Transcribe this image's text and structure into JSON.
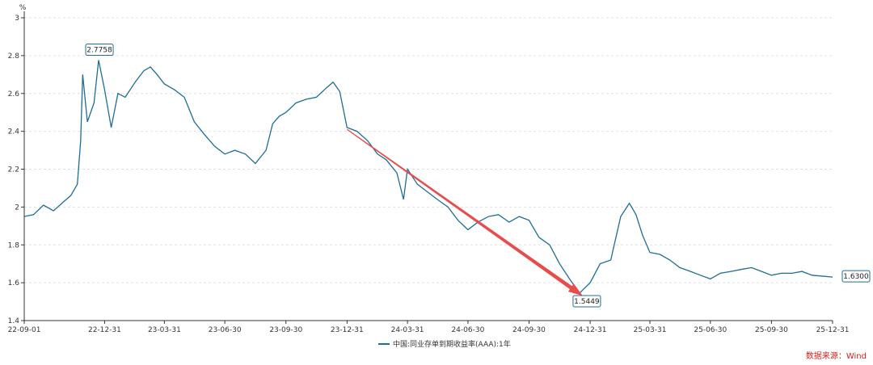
{
  "chart_data": {
    "type": "line",
    "ylabel": "%",
    "ylim": [
      1.4,
      3.0
    ],
    "y_ticks": [
      "1.4",
      "1.6",
      "1.8",
      "2",
      "2.2",
      "2.4",
      "2.6",
      "2.8",
      "3"
    ],
    "x_ticks": [
      "22-09-01",
      "22-12-31",
      "23-03-31",
      "23-06-30",
      "23-09-30",
      "23-12-31",
      "24-03-31",
      "24-06-30",
      "24-09-30",
      "24-12-31",
      "25-03-31",
      "25-06-30",
      "25-09-30",
      "25-12-31"
    ],
    "grid": true,
    "legend_position": "bottom-center",
    "series": [
      {
        "name": "中国:同业存单到期收益率(AAA):1年",
        "color": "#1e6f94",
        "points": [
          [
            "22-09-01",
            1.95
          ],
          [
            "22-09-15",
            1.96
          ],
          [
            "22-09-30",
            2.01
          ],
          [
            "22-10-15",
            1.98
          ],
          [
            "22-10-31",
            2.03
          ],
          [
            "22-11-10",
            2.06
          ],
          [
            "22-11-20",
            2.12
          ],
          [
            "22-11-25",
            2.35
          ],
          [
            "22-11-28",
            2.7
          ],
          [
            "22-12-05",
            2.45
          ],
          [
            "22-12-15",
            2.55
          ],
          [
            "22-12-22",
            2.7758
          ],
          [
            "22-12-31",
            2.62
          ],
          [
            "23-01-10",
            2.42
          ],
          [
            "23-01-20",
            2.6
          ],
          [
            "23-01-31",
            2.58
          ],
          [
            "23-02-15",
            2.66
          ],
          [
            "23-02-28",
            2.72
          ],
          [
            "23-03-10",
            2.74
          ],
          [
            "23-03-20",
            2.7
          ],
          [
            "23-03-31",
            2.65
          ],
          [
            "23-04-15",
            2.62
          ],
          [
            "23-04-30",
            2.58
          ],
          [
            "23-05-15",
            2.45
          ],
          [
            "23-05-31",
            2.38
          ],
          [
            "23-06-15",
            2.32
          ],
          [
            "23-06-30",
            2.28
          ],
          [
            "23-07-15",
            2.3
          ],
          [
            "23-07-31",
            2.28
          ],
          [
            "23-08-15",
            2.23
          ],
          [
            "23-08-31",
            2.3
          ],
          [
            "23-09-10",
            2.44
          ],
          [
            "23-09-20",
            2.48
          ],
          [
            "23-09-30",
            2.5
          ],
          [
            "23-10-15",
            2.55
          ],
          [
            "23-10-31",
            2.57
          ],
          [
            "23-11-15",
            2.58
          ],
          [
            "23-11-30",
            2.63
          ],
          [
            "23-12-10",
            2.66
          ],
          [
            "23-12-20",
            2.61
          ],
          [
            "23-12-31",
            2.42
          ],
          [
            "24-01-15",
            2.4
          ],
          [
            "24-01-31",
            2.35
          ],
          [
            "24-02-15",
            2.28
          ],
          [
            "24-02-28",
            2.25
          ],
          [
            "24-03-15",
            2.18
          ],
          [
            "24-03-25",
            2.04
          ],
          [
            "24-03-31",
            2.2
          ],
          [
            "24-04-15",
            2.12
          ],
          [
            "24-04-30",
            2.08
          ],
          [
            "24-05-15",
            2.04
          ],
          [
            "24-05-31",
            2.0
          ],
          [
            "24-06-15",
            1.93
          ],
          [
            "24-06-30",
            1.88
          ],
          [
            "24-07-15",
            1.92
          ],
          [
            "24-07-31",
            1.95
          ],
          [
            "24-08-15",
            1.96
          ],
          [
            "24-08-31",
            1.92
          ],
          [
            "24-09-15",
            1.95
          ],
          [
            "24-09-30",
            1.93
          ],
          [
            "24-10-15",
            1.84
          ],
          [
            "24-10-31",
            1.8
          ],
          [
            "24-11-15",
            1.7
          ],
          [
            "24-11-30",
            1.62
          ],
          [
            "24-12-15",
            1.5449
          ],
          [
            "24-12-31",
            1.6
          ],
          [
            "25-01-15",
            1.7
          ],
          [
            "25-01-31",
            1.72
          ],
          [
            "25-02-15",
            1.95
          ],
          [
            "25-02-28",
            2.02
          ],
          [
            "25-03-10",
            1.96
          ],
          [
            "25-03-20",
            1.85
          ],
          [
            "25-03-31",
            1.76
          ],
          [
            "25-04-15",
            1.75
          ],
          [
            "25-04-30",
            1.72
          ],
          [
            "25-05-15",
            1.68
          ],
          [
            "25-05-31",
            1.66
          ],
          [
            "25-06-15",
            1.64
          ],
          [
            "25-06-30",
            1.62
          ],
          [
            "25-07-15",
            1.65
          ],
          [
            "25-07-31",
            1.66
          ],
          [
            "25-08-15",
            1.67
          ],
          [
            "25-08-31",
            1.68
          ],
          [
            "25-09-15",
            1.66
          ],
          [
            "25-09-30",
            1.64
          ],
          [
            "25-10-15",
            1.65
          ],
          [
            "25-10-31",
            1.65
          ],
          [
            "25-11-15",
            1.66
          ],
          [
            "25-11-30",
            1.64
          ],
          [
            "25-12-31",
            1.63
          ]
        ]
      }
    ],
    "annotations": [
      {
        "date": "22-12-22",
        "label": "2.7758",
        "value": 2.7758
      },
      {
        "date": "24-12-15",
        "label": "1.5449",
        "value": 1.5449
      },
      {
        "date": "25-12-31",
        "label": "1.6300",
        "value": 1.63
      }
    ],
    "trend_arrow": {
      "from": [
        "23-12-31",
        2.41
      ],
      "to": [
        "24-12-20",
        1.53
      ],
      "color": "#e84c4c"
    }
  },
  "source_label": "数据来源：Wind"
}
